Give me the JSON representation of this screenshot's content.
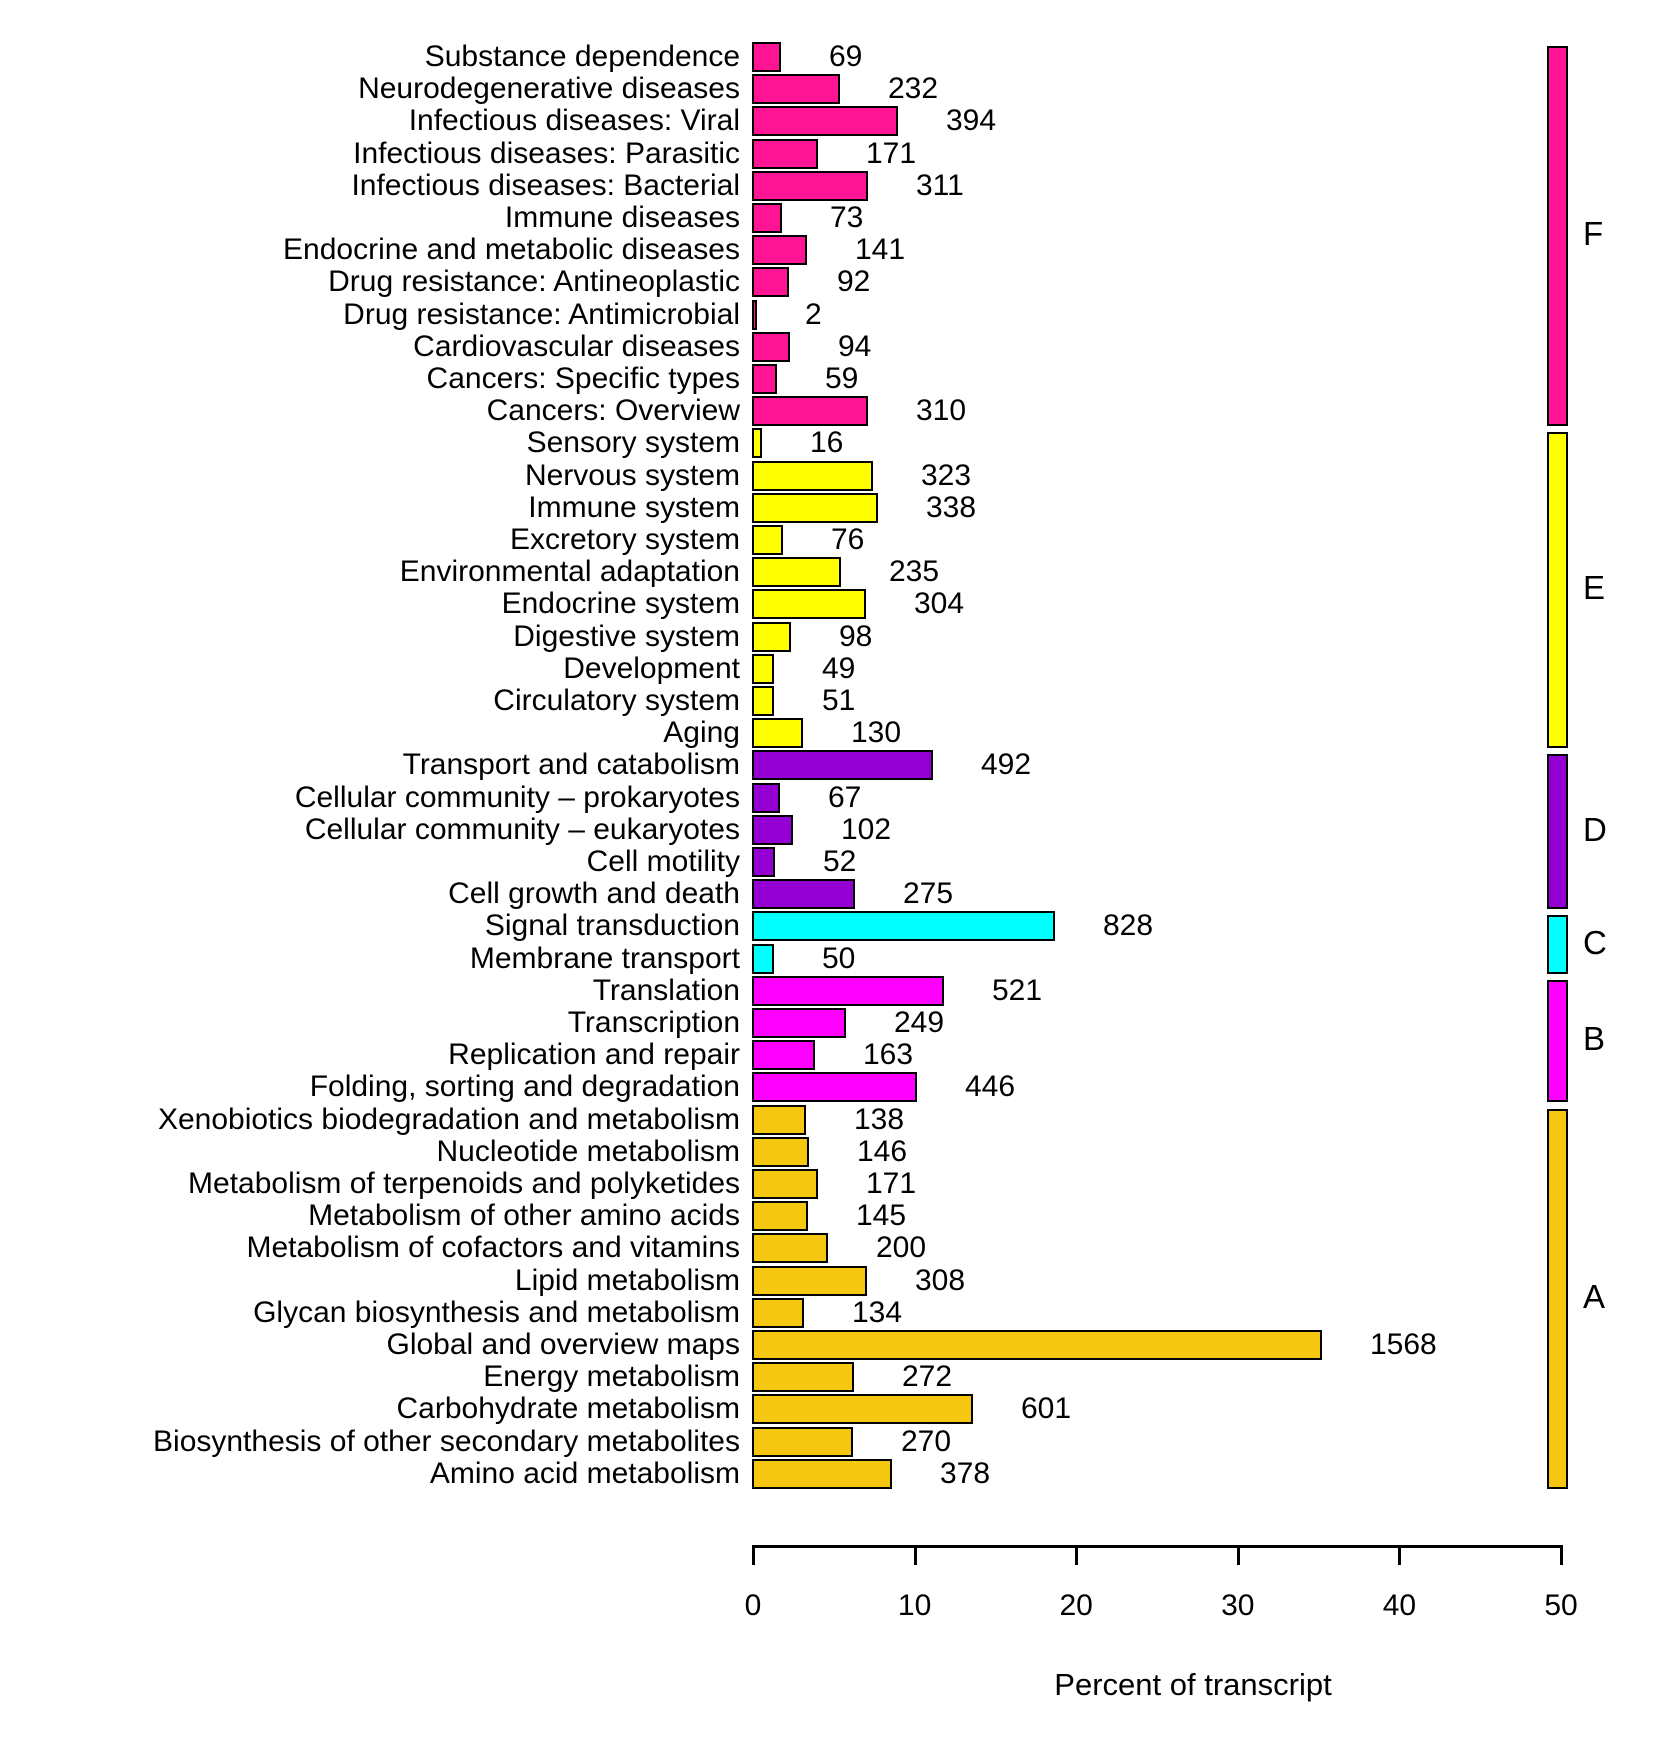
{
  "chart_data": {
    "type": "bar",
    "orientation": "horizontal",
    "title": "",
    "xlabel": "Percent of transcript",
    "ylabel": "",
    "xlim": [
      0,
      50
    ],
    "x_ticks": [
      0,
      10,
      20,
      30,
      40,
      50
    ],
    "grid": false,
    "legend_position": "right",
    "groups": [
      {
        "id": "F",
        "label": "F",
        "color": "#FF1493"
      },
      {
        "id": "E",
        "label": "E",
        "color": "#FFFF00"
      },
      {
        "id": "D",
        "label": "D",
        "color": "#9400D3"
      },
      {
        "id": "C",
        "label": "C",
        "color": "#00FFFF"
      },
      {
        "id": "B",
        "label": "B",
        "color": "#FF00FF"
      },
      {
        "id": "A",
        "label": "A",
        "color": "#F5C710"
      }
    ],
    "bars": [
      {
        "label": "Substance dependence",
        "value": 69,
        "percent": 1.54,
        "group": "F"
      },
      {
        "label": "Neurodegenerative diseases",
        "value": 232,
        "percent": 5.18,
        "group": "F"
      },
      {
        "label": "Infectious diseases: Viral",
        "value": 394,
        "percent": 8.79,
        "group": "F"
      },
      {
        "label": "Infectious diseases: Parasitic",
        "value": 171,
        "percent": 3.82,
        "group": "F"
      },
      {
        "label": "Infectious diseases: Bacterial",
        "value": 311,
        "percent": 6.94,
        "group": "F"
      },
      {
        "label": "Immune diseases",
        "value": 73,
        "percent": 1.63,
        "group": "F"
      },
      {
        "label": "Endocrine and metabolic diseases",
        "value": 141,
        "percent": 3.15,
        "group": "F"
      },
      {
        "label": "Drug resistance: Antineoplastic",
        "value": 92,
        "percent": 2.05,
        "group": "F"
      },
      {
        "label": "Drug resistance: Antimicrobial",
        "value": 2,
        "percent": 0.04,
        "group": "F"
      },
      {
        "label": "Cardiovascular diseases",
        "value": 94,
        "percent": 2.1,
        "group": "F"
      },
      {
        "label": "Cancers: Specific types",
        "value": 59,
        "percent": 1.32,
        "group": "F"
      },
      {
        "label": "Cancers: Overview",
        "value": 310,
        "percent": 6.92,
        "group": "F"
      },
      {
        "label": "Sensory system",
        "value": 16,
        "percent": 0.36,
        "group": "E"
      },
      {
        "label": "Nervous system",
        "value": 323,
        "percent": 7.21,
        "group": "E"
      },
      {
        "label": "Immune system",
        "value": 338,
        "percent": 7.54,
        "group": "E"
      },
      {
        "label": "Excretory system",
        "value": 76,
        "percent": 1.7,
        "group": "E"
      },
      {
        "label": "Environmental adaptation",
        "value": 235,
        "percent": 5.25,
        "group": "E"
      },
      {
        "label": "Endocrine system",
        "value": 304,
        "percent": 6.79,
        "group": "E"
      },
      {
        "label": "Digestive system",
        "value": 98,
        "percent": 2.19,
        "group": "E"
      },
      {
        "label": "Development",
        "value": 49,
        "percent": 1.09,
        "group": "E"
      },
      {
        "label": "Circulatory system",
        "value": 51,
        "percent": 1.14,
        "group": "E"
      },
      {
        "label": "Aging",
        "value": 130,
        "percent": 2.9,
        "group": "E"
      },
      {
        "label": "Transport and catabolism",
        "value": 492,
        "percent": 10.98,
        "group": "D"
      },
      {
        "label": "Cellular community – prokaryotes",
        "value": 67,
        "percent": 1.5,
        "group": "D"
      },
      {
        "label": "Cellular community – eukaryotes",
        "value": 102,
        "percent": 2.28,
        "group": "D"
      },
      {
        "label": "Cell motility",
        "value": 52,
        "percent": 1.16,
        "group": "D"
      },
      {
        "label": "Cell growth and death",
        "value": 275,
        "percent": 6.14,
        "group": "D"
      },
      {
        "label": "Signal transduction",
        "value": 828,
        "percent": 18.48,
        "group": "C"
      },
      {
        "label": "Membrane transport",
        "value": 50,
        "percent": 1.12,
        "group": "C"
      },
      {
        "label": "Translation",
        "value": 521,
        "percent": 11.63,
        "group": "B"
      },
      {
        "label": "Transcription",
        "value": 249,
        "percent": 5.56,
        "group": "B"
      },
      {
        "label": "Replication and repair",
        "value": 163,
        "percent": 3.64,
        "group": "B"
      },
      {
        "label": "Folding, sorting and degradation",
        "value": 446,
        "percent": 9.96,
        "group": "B"
      },
      {
        "label": "Xenobiotics biodegradation and metabolism",
        "value": 138,
        "percent": 3.08,
        "group": "A"
      },
      {
        "label": "Nucleotide metabolism",
        "value": 146,
        "percent": 3.26,
        "group": "A"
      },
      {
        "label": "Metabolism of terpenoids and polyketides",
        "value": 171,
        "percent": 3.82,
        "group": "A"
      },
      {
        "label": "Metabolism of other amino acids",
        "value": 145,
        "percent": 3.24,
        "group": "A"
      },
      {
        "label": "Metabolism of cofactors and vitamins",
        "value": 200,
        "percent": 4.46,
        "group": "A"
      },
      {
        "label": "Lipid metabolism",
        "value": 308,
        "percent": 6.88,
        "group": "A"
      },
      {
        "label": "Glycan biosynthesis and metabolism",
        "value": 134,
        "percent": 2.99,
        "group": "A"
      },
      {
        "label": "Global and overview maps",
        "value": 1568,
        "percent": 35.0,
        "group": "A"
      },
      {
        "label": "Energy metabolism",
        "value": 272,
        "percent": 6.07,
        "group": "A"
      },
      {
        "label": "Carbohydrate metabolism",
        "value": 601,
        "percent": 13.42,
        "group": "A"
      },
      {
        "label": "Biosynthesis of other secondary metabolites",
        "value": 270,
        "percent": 6.03,
        "group": "A"
      },
      {
        "label": "Amino acid metabolism",
        "value": 378,
        "percent": 8.44,
        "group": "A"
      }
    ]
  }
}
